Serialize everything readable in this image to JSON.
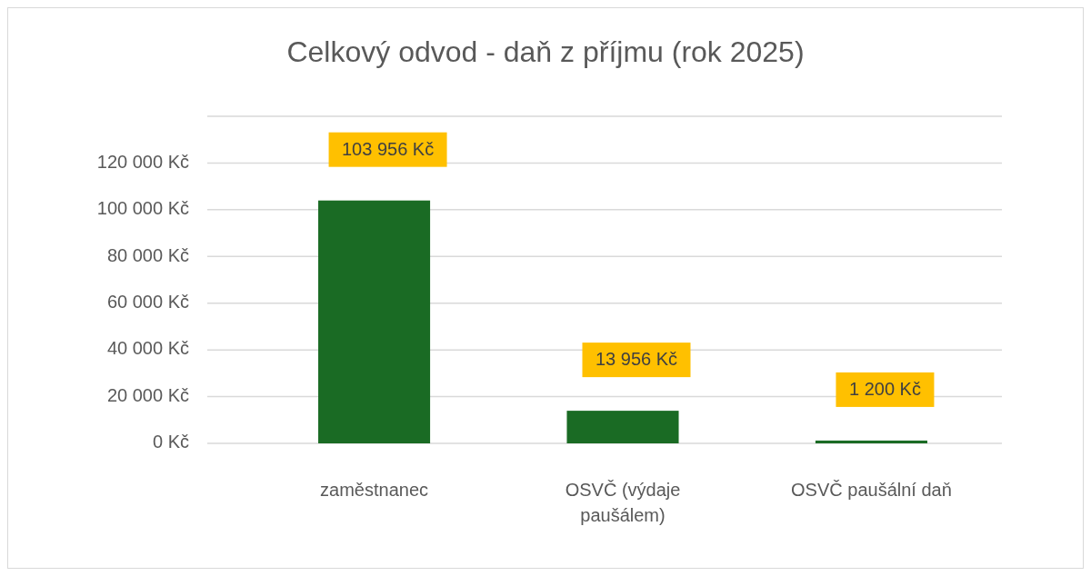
{
  "chart_data": {
    "type": "bar",
    "title": "Celkový odvod - daň z příjmu (rok 2025)",
    "categories": [
      "zaměstnanec",
      "OSVČ (výdaje paušálem)",
      "OSVČ paušální daň"
    ],
    "values": [
      103956,
      13956,
      1200
    ],
    "value_labels": [
      "103 956 Kč",
      "13 956 Kč",
      "1 200 Kč"
    ],
    "color": "#1a6b24",
    "ylim": [
      0,
      140000
    ],
    "yticks": [
      {
        "value": 0,
        "label": "0 Kč"
      },
      {
        "value": 20000,
        "label": "20 000 Kč"
      },
      {
        "value": 40000,
        "label": "40 000 Kč"
      },
      {
        "value": 60000,
        "label": "60 000 Kč"
      },
      {
        "value": 80000,
        "label": "80 000 Kč"
      },
      {
        "value": 100000,
        "label": "100 000 Kč"
      },
      {
        "value": 120000,
        "label": "120 000 Kč"
      },
      {
        "value": 140000,
        "label": null
      }
    ],
    "grid": "y"
  }
}
